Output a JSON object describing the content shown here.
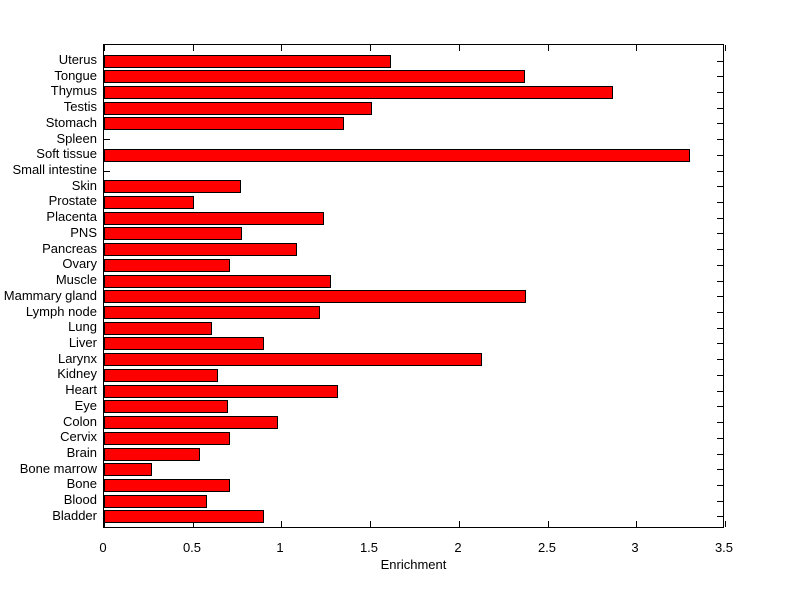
{
  "window": {
    "background": "#FFFFFF",
    "text_color": "#000000"
  },
  "chart_data": {
    "type": "bar",
    "orientation": "horizontal",
    "title": "",
    "xlabel": "Enrichment",
    "ylabel": "",
    "xlim": [
      0,
      3.5
    ],
    "x_tick_values": [
      0,
      0.5,
      1,
      1.5,
      2,
      2.5,
      3,
      3.5
    ],
    "x_tick_labels": [
      "0",
      "0.5",
      "1",
      "1.5",
      "2",
      "2.5",
      "3",
      "3.5"
    ],
    "grid": false,
    "bar_color": "#FF0000",
    "bar_edge_color": "#000000",
    "axis_color": "#000000",
    "categories": [
      "Uterus",
      "Tongue",
      "Thymus",
      "Testis",
      "Stomach",
      "Spleen",
      "Soft tissue",
      "Small intestine",
      "Skin",
      "Prostate",
      "Placenta",
      "PNS",
      "Pancreas",
      "Ovary",
      "Muscle",
      "Mammary gland",
      "Lymph node",
      "Lung",
      "Liver",
      "Larynx",
      "Kidney",
      "Heart",
      "Eye",
      "Colon",
      "Cervix",
      "Brain",
      "Bone marrow",
      "Bone",
      "Blood",
      "Bladder"
    ],
    "values": [
      1.62,
      2.37,
      2.87,
      1.51,
      1.35,
      0,
      3.3,
      0,
      0.77,
      0.51,
      1.24,
      0.78,
      1.09,
      0.71,
      1.28,
      2.38,
      1.22,
      0.61,
      0.9,
      2.13,
      0.64,
      1.32,
      0.7,
      0.98,
      0.71,
      0.54,
      0.27,
      0.71,
      0.58,
      0.9
    ]
  }
}
